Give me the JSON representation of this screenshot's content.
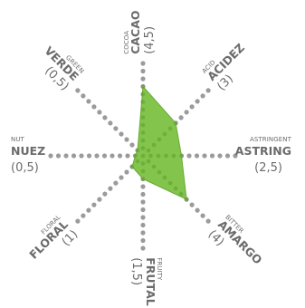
{
  "chart_data": {
    "type": "radar",
    "title": "",
    "rmax": 5,
    "colors": {
      "fill": "#7cc242",
      "fill_stroke": "#6aaa35",
      "dots": "#9b9b9b",
      "text": "#6b6b6b"
    },
    "axes": [
      {
        "en": "COCOA",
        "es": "CACAO",
        "value_label": "(4,5)",
        "value": 4.5
      },
      {
        "en": "ACID",
        "es": "ACIDEZ",
        "value_label": "(3)",
        "value": 3
      },
      {
        "en": "ASTRINGENT",
        "es": "ASTRING",
        "value_label": "(2,5)",
        "value": 2.5
      },
      {
        "en": "BITTER",
        "es": "AMARGO",
        "value_label": "(4)",
        "value": 4
      },
      {
        "en": "FRUITY",
        "es": "FRUTAL",
        "value_label": "(1,5)",
        "value": 1.5
      },
      {
        "en": "FLORAL",
        "es": "FLORAL",
        "value_label": "(1)",
        "value": 1
      },
      {
        "en": "NUT",
        "es": "NUEZ",
        "value_label": "(0,5)",
        "value": 0.5
      },
      {
        "en": "GREEN",
        "es": "VERDE",
        "value_label": "(0,5)",
        "value": 0.5
      }
    ]
  }
}
